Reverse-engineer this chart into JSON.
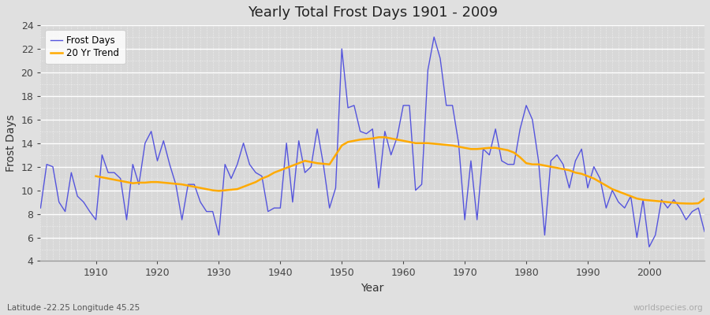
{
  "title": "Yearly Total Frost Days 1901 - 2009",
  "xlabel": "Year",
  "ylabel": "Frost Days",
  "subtitle": "Latitude -22.25 Longitude 45.25",
  "watermark": "worldspecies.org",
  "years": [
    1901,
    1902,
    1903,
    1904,
    1905,
    1906,
    1907,
    1908,
    1909,
    1910,
    1911,
    1912,
    1913,
    1914,
    1915,
    1916,
    1917,
    1918,
    1919,
    1920,
    1921,
    1922,
    1923,
    1924,
    1925,
    1926,
    1927,
    1928,
    1929,
    1930,
    1931,
    1932,
    1933,
    1934,
    1935,
    1936,
    1937,
    1938,
    1939,
    1940,
    1941,
    1942,
    1943,
    1944,
    1945,
    1946,
    1947,
    1948,
    1949,
    1950,
    1951,
    1952,
    1953,
    1954,
    1955,
    1956,
    1957,
    1958,
    1959,
    1960,
    1961,
    1962,
    1963,
    1964,
    1965,
    1966,
    1967,
    1968,
    1969,
    1970,
    1971,
    1972,
    1973,
    1974,
    1975,
    1976,
    1977,
    1978,
    1979,
    1980,
    1981,
    1982,
    1983,
    1984,
    1985,
    1986,
    1987,
    1988,
    1989,
    1990,
    1991,
    1992,
    1993,
    1994,
    1995,
    1996,
    1997,
    1998,
    1999,
    2000,
    2001,
    2002,
    2003,
    2004,
    2005,
    2006,
    2007,
    2008,
    2009
  ],
  "frost_days": [
    8.5,
    12.2,
    12.0,
    9.0,
    8.2,
    11.5,
    9.5,
    9.0,
    8.2,
    7.5,
    13.0,
    11.5,
    11.5,
    11.0,
    7.5,
    12.2,
    10.5,
    14.0,
    15.0,
    12.5,
    14.2,
    12.2,
    10.5,
    7.5,
    10.5,
    10.5,
    9.0,
    8.2,
    8.2,
    6.2,
    12.2,
    11.0,
    12.2,
    14.0,
    12.2,
    11.5,
    11.2,
    8.2,
    8.5,
    8.5,
    14.0,
    9.0,
    14.2,
    11.5,
    12.0,
    15.2,
    12.2,
    8.5,
    10.2,
    22.0,
    17.0,
    17.2,
    15.0,
    14.8,
    15.2,
    10.2,
    15.0,
    13.0,
    14.5,
    17.2,
    17.2,
    10.0,
    10.5,
    20.2,
    23.0,
    21.2,
    17.2,
    17.2,
    14.0,
    7.5,
    12.5,
    7.5,
    13.5,
    13.0,
    15.2,
    12.5,
    12.2,
    12.2,
    15.2,
    17.2,
    16.0,
    12.5,
    6.2,
    12.5,
    13.0,
    12.2,
    10.2,
    12.5,
    13.5,
    10.2,
    12.0,
    11.0,
    8.5,
    10.0,
    9.0,
    8.5,
    9.5,
    6.0,
    9.2,
    5.2,
    6.2,
    9.2,
    8.5,
    9.2,
    8.5,
    7.5,
    8.2,
    8.5,
    6.5
  ],
  "trend_years": [
    1901,
    1902,
    1903,
    1904,
    1905,
    1906,
    1907,
    1908,
    1909,
    1910,
    1911,
    1912,
    1913,
    1914,
    1915,
    1916,
    1917,
    1918,
    1919,
    1920,
    1921,
    1922,
    1923,
    1924,
    1925,
    1926,
    1927,
    1928,
    1929,
    1930,
    1931,
    1932,
    1933,
    1934,
    1935,
    1936,
    1937,
    1938,
    1939,
    1940,
    1941,
    1942,
    1943,
    1944,
    1945,
    1946,
    1947,
    1948,
    1949,
    1950,
    1951,
    1952,
    1953,
    1954,
    1955,
    1956,
    1957,
    1958,
    1959,
    1960,
    1961,
    1962,
    1963,
    1964,
    1965,
    1966,
    1967,
    1968,
    1969,
    1970,
    1971,
    1972,
    1973,
    1974,
    1975,
    1976,
    1977,
    1978,
    1979,
    1980,
    1981,
    1982,
    1983,
    1984,
    1985,
    1986,
    1987,
    1988,
    1989,
    1990,
    1991,
    1992,
    1993,
    1994,
    1995,
    1996,
    1997,
    1998,
    1999,
    2000,
    2001,
    2002,
    2003,
    2004,
    2005,
    2006,
    2007,
    2008,
    2009
  ],
  "trend_values": [
    null,
    null,
    null,
    null,
    null,
    null,
    null,
    null,
    null,
    11.2,
    11.1,
    11.0,
    10.9,
    10.8,
    10.7,
    10.6,
    10.65,
    10.65,
    10.7,
    10.7,
    10.65,
    10.6,
    10.55,
    10.5,
    10.4,
    10.3,
    10.2,
    10.1,
    10.0,
    9.95,
    10.0,
    10.05,
    10.1,
    10.3,
    10.5,
    10.7,
    11.0,
    11.2,
    11.5,
    11.7,
    11.9,
    12.1,
    12.3,
    12.5,
    12.4,
    12.3,
    12.25,
    12.2,
    13.0,
    13.8,
    14.1,
    14.2,
    14.3,
    14.35,
    14.4,
    14.5,
    14.5,
    14.4,
    14.3,
    14.2,
    14.1,
    14.0,
    14.0,
    14.0,
    13.95,
    13.9,
    13.85,
    13.8,
    13.7,
    13.6,
    13.5,
    13.5,
    13.55,
    13.6,
    13.6,
    13.5,
    13.4,
    13.2,
    12.8,
    12.3,
    12.2,
    12.2,
    12.1,
    12.0,
    11.9,
    11.8,
    11.7,
    11.5,
    11.4,
    11.2,
    11.0,
    10.7,
    10.4,
    10.1,
    9.9,
    9.7,
    9.5,
    9.3,
    9.2,
    9.15,
    9.1,
    9.05,
    9.0,
    8.95,
    8.9,
    8.88,
    8.87,
    8.9,
    9.3
  ],
  "frost_color": "#5555dd",
  "trend_color": "#ffaa00",
  "fig_bg_color": "#e0e0e0",
  "plot_bg_color": "#d8d8d8",
  "ylim": [
    4,
    24
  ],
  "yticks": [
    4,
    6,
    8,
    10,
    12,
    14,
    16,
    18,
    20,
    22,
    24
  ],
  "xlim": [
    1901,
    2009
  ],
  "xticks": [
    1910,
    1920,
    1930,
    1940,
    1950,
    1960,
    1970,
    1980,
    1990,
    2000
  ]
}
